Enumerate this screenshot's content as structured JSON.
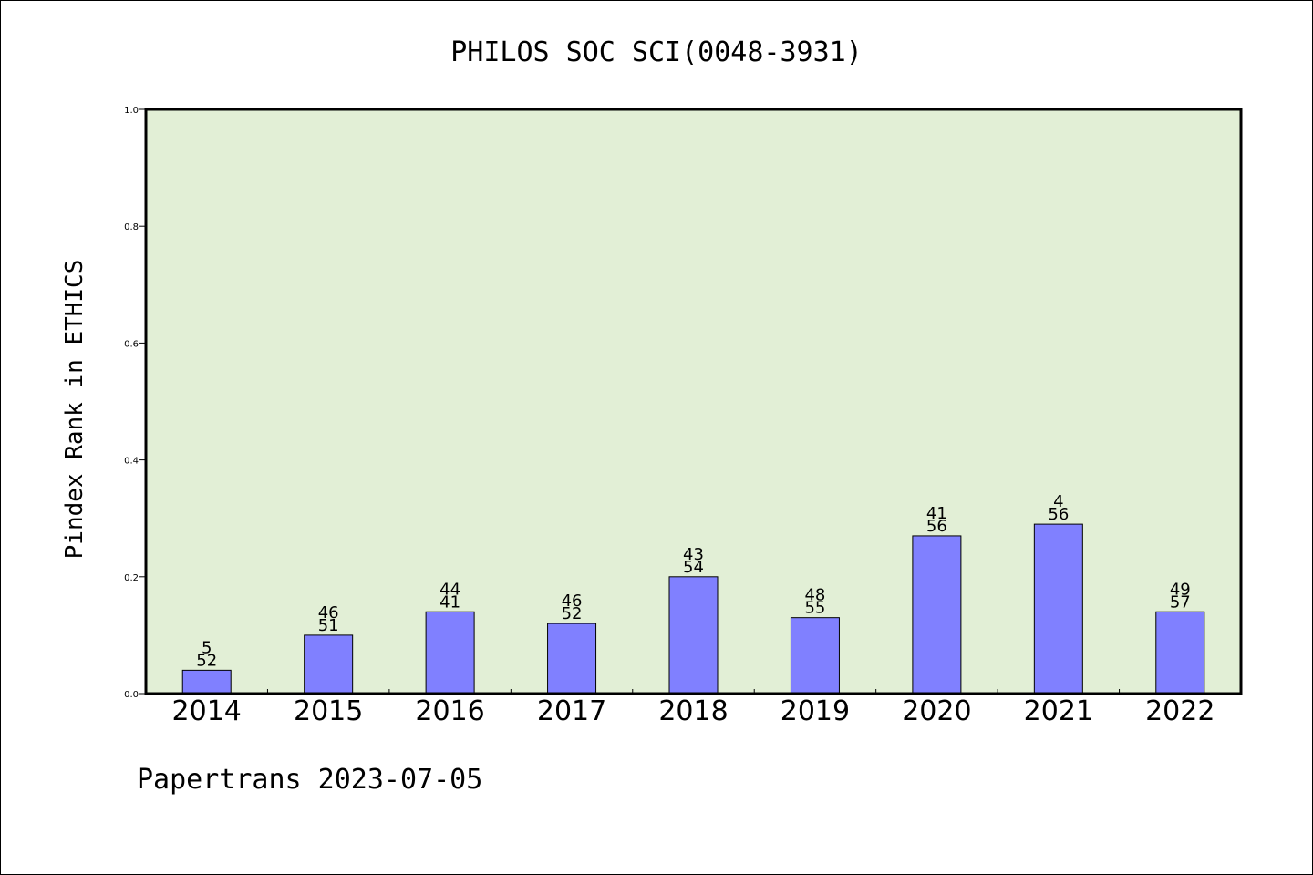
{
  "chart_data": {
    "type": "bar",
    "title": "PHILOS SOC SCI(0048-3931)",
    "xlabel": "",
    "ylabel": "Pindex Rank in ETHICS",
    "categories": [
      "2014",
      "2015",
      "2016",
      "2017",
      "2018",
      "2019",
      "2020",
      "2021",
      "2022"
    ],
    "values": [
      0.04,
      0.1,
      0.14,
      0.12,
      0.2,
      0.13,
      0.27,
      0.29,
      0.14
    ],
    "bar_labels_top": [
      "5",
      "46",
      "44",
      "46",
      "43",
      "48",
      "41",
      "4",
      "49"
    ],
    "bar_labels_bottom": [
      "52",
      "51",
      "41",
      "52",
      "54",
      "55",
      "56",
      "56",
      "57"
    ],
    "ylim": [
      0,
      1.0
    ],
    "yticks": [
      "0.0",
      "0.2",
      "0.4",
      "0.6",
      "0.8",
      "1.0"
    ],
    "grid": false,
    "legend": "none",
    "colors": {
      "bar_fill": "#8080ff",
      "plot_background": "#e2efd6",
      "axes": "#000000"
    }
  },
  "footer": "Papertrans 2023-07-05"
}
